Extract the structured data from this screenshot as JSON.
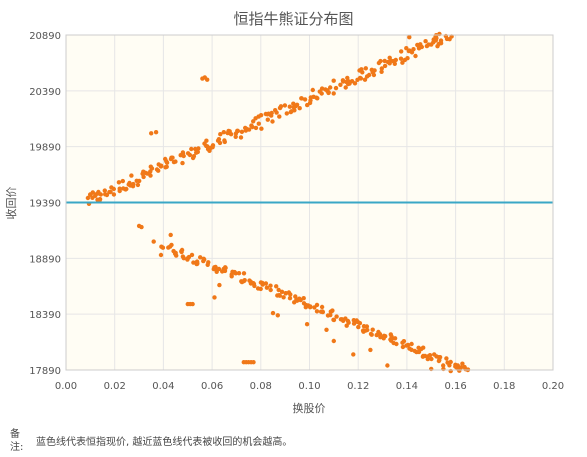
{
  "chart_data": {
    "type": "scatter",
    "title": "恒指牛熊证分布图",
    "xlabel": "换股价",
    "ylabel": "收回价",
    "xlim": [
      0.0,
      0.2
    ],
    "ylim": [
      17890,
      20890
    ],
    "xticks": [
      "0.00",
      "0.02",
      "0.04",
      "0.06",
      "0.08",
      "0.10",
      "0.12",
      "0.14",
      "0.16",
      "0.18",
      "0.20"
    ],
    "yticks": [
      "17890",
      "18390",
      "18890",
      "19390",
      "19890",
      "20390",
      "20890"
    ],
    "reference_line": {
      "y": 19390,
      "color": "#3aa7c6"
    },
    "grid": true,
    "point_color": "#f07818",
    "bull_band": {
      "x": [
        0.009,
        0.157
      ],
      "y": [
        19400,
        20890
      ],
      "count": 230,
      "spread": 55
    },
    "bear_band": {
      "x": [
        0.04,
        0.165
      ],
      "y": [
        19000,
        17890
      ],
      "count": 185,
      "spread": 40
    },
    "points": [
      [
        0.009,
        19430
      ],
      [
        0.01,
        19460
      ],
      [
        0.011,
        19480
      ],
      [
        0.012,
        19450
      ],
      [
        0.013,
        19470
      ],
      [
        0.014,
        19420
      ],
      [
        0.035,
        20010
      ],
      [
        0.037,
        20020
      ],
      [
        0.056,
        20500
      ],
      [
        0.058,
        20490
      ],
      [
        0.057,
        20510
      ],
      [
        0.03,
        19180
      ],
      [
        0.031,
        19170
      ],
      [
        0.036,
        19040
      ],
      [
        0.039,
        18920
      ],
      [
        0.043,
        19100
      ],
      [
        0.05,
        18480
      ],
      [
        0.051,
        18480
      ],
      [
        0.052,
        18480
      ],
      [
        0.061,
        18540
      ],
      [
        0.063,
        18650
      ],
      [
        0.073,
        17960
      ],
      [
        0.074,
        17960
      ],
      [
        0.075,
        17960
      ],
      [
        0.076,
        17960
      ],
      [
        0.077,
        17960
      ],
      [
        0.085,
        18400
      ],
      [
        0.087,
        18380
      ],
      [
        0.099,
        18300
      ],
      [
        0.107,
        18250
      ],
      [
        0.11,
        18150
      ],
      [
        0.118,
        18030
      ],
      [
        0.125,
        18070
      ],
      [
        0.132,
        17930
      ],
      [
        0.144,
        18050
      ],
      [
        0.15,
        17900
      ],
      [
        0.155,
        17900
      ],
      [
        0.158,
        17880
      ],
      [
        0.161,
        17900
      ],
      [
        0.165,
        17890
      ],
      [
        0.132,
        20920
      ],
      [
        0.141,
        20870
      ],
      [
        0.151,
        20850
      ],
      [
        0.154,
        20840
      ],
      [
        0.156,
        20880
      ]
    ]
  },
  "note": {
    "label": "备注:",
    "text": "蓝色线代表恒指现价, 越近蓝色线代表被收回的机会越高。"
  }
}
